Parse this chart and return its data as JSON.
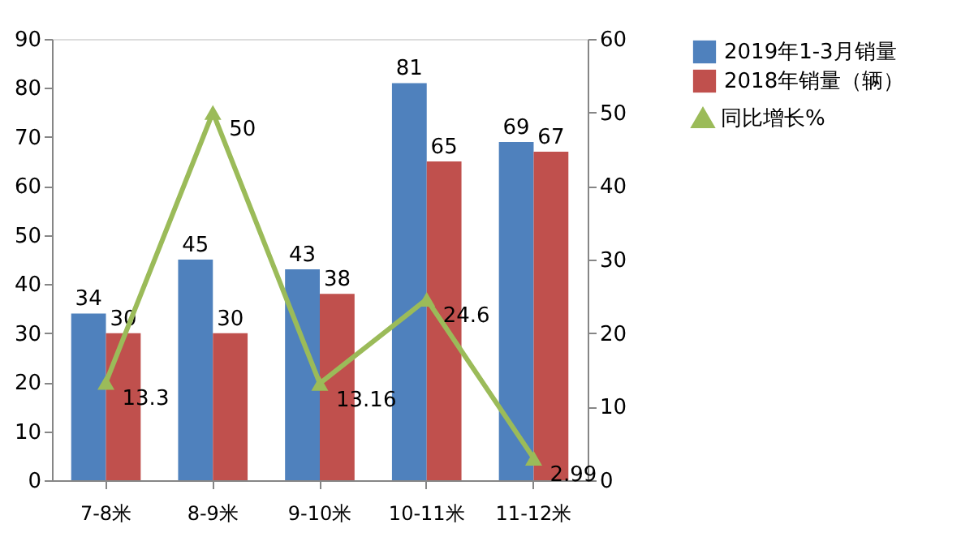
{
  "chart_data": {
    "type": "bar",
    "categories": [
      "7-8米",
      "8-9米",
      "9-10米",
      "10-11米",
      "11-12米"
    ],
    "series": [
      {
        "name": "2019年1-3月销量",
        "color": "#4f81bd",
        "values": [
          34,
          45,
          43,
          81,
          69
        ]
      },
      {
        "name": "2018年销量（辆）",
        "color": "#c0504d",
        "values": [
          30,
          30,
          38,
          65,
          67
        ]
      },
      {
        "name": "同比增长%",
        "type": "line",
        "axis": "y2",
        "color": "#9bbb59",
        "marker": "triangle",
        "values": [
          13.3,
          50,
          13.16,
          24.6,
          2.99
        ]
      }
    ],
    "ylim": [
      0,
      90
    ],
    "yticks": [
      0,
      10,
      20,
      30,
      40,
      50,
      60,
      70,
      80,
      90
    ],
    "y2lim": [
      0,
      60
    ],
    "y2ticks": [
      0,
      10,
      20,
      30,
      40,
      50,
      60
    ],
    "data_labels": true,
    "grid": false,
    "legend": "right"
  }
}
